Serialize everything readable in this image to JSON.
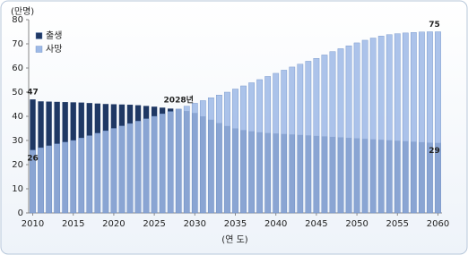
{
  "chart_data": {
    "type": "bar",
    "y_unit": "(만명)",
    "x_label": "(연 도)",
    "x": [
      2010,
      2011,
      2012,
      2013,
      2014,
      2015,
      2016,
      2017,
      2018,
      2019,
      2020,
      2021,
      2022,
      2023,
      2024,
      2025,
      2026,
      2027,
      2028,
      2029,
      2030,
      2031,
      2032,
      2033,
      2034,
      2035,
      2036,
      2037,
      2038,
      2039,
      2040,
      2041,
      2042,
      2043,
      2044,
      2045,
      2046,
      2047,
      2048,
      2049,
      2050,
      2051,
      2052,
      2053,
      2054,
      2055,
      2056,
      2057,
      2058,
      2059,
      2060
    ],
    "series": [
      {
        "name": "출생",
        "color": "#1f3864",
        "values": [
          47,
          46.2,
          46.1,
          46.0,
          45.9,
          45.8,
          45.7,
          45.5,
          45.3,
          45.1,
          45.0,
          44.9,
          44.8,
          44.6,
          44.3,
          44.0,
          43.6,
          43.2,
          43.0,
          42.2,
          41.4,
          40.0,
          38.6,
          37.2,
          36.0,
          35.0,
          34.3,
          33.8,
          33.4,
          33.1,
          32.9,
          32.7,
          32.5,
          32.3,
          32.1,
          31.9,
          31.7,
          31.5,
          31.3,
          31.1,
          30.9,
          30.7,
          30.5,
          30.3,
          30.1,
          29.9,
          29.7,
          29.5,
          29.3,
          29.1,
          29
        ],
        "value_labels": [
          "47",
          null,
          null,
          null,
          null,
          null,
          null,
          null,
          null,
          null,
          null,
          null,
          null,
          null,
          null,
          null,
          null,
          null,
          null,
          null,
          null,
          null,
          null,
          null,
          null,
          null,
          null,
          null,
          null,
          null,
          null,
          null,
          null,
          null,
          null,
          null,
          null,
          null,
          null,
          null,
          null,
          null,
          null,
          null,
          null,
          null,
          null,
          null,
          null,
          null,
          "29"
        ]
      },
      {
        "name": "사망",
        "color": "#9db9e6",
        "values": [
          26,
          27.0,
          27.8,
          28.6,
          29.3,
          30.0,
          31.0,
          32.0,
          33.0,
          34.0,
          35.0,
          36.0,
          37.0,
          38.0,
          39.0,
          40.0,
          41.0,
          42.0,
          43.0,
          44.2,
          45.4,
          46.5,
          47.7,
          48.8,
          50.0,
          51.3,
          52.6,
          53.9,
          55.2,
          56.5,
          57.8,
          59.1,
          60.4,
          61.6,
          62.8,
          64.0,
          65.4,
          66.8,
          68.0,
          69.2,
          70.4,
          71.5,
          72.4,
          73.2,
          73.8,
          74.2,
          74.5,
          74.7,
          74.9,
          75.0,
          75
        ],
        "value_labels": [
          "26",
          null,
          null,
          null,
          null,
          null,
          null,
          null,
          null,
          null,
          null,
          null,
          null,
          null,
          null,
          null,
          null,
          null,
          null,
          null,
          null,
          null,
          null,
          null,
          null,
          null,
          null,
          null,
          null,
          null,
          null,
          null,
          null,
          null,
          null,
          null,
          null,
          null,
          null,
          null,
          null,
          null,
          null,
          null,
          null,
          null,
          null,
          null,
          null,
          null,
          "75"
        ]
      }
    ],
    "annotations": [
      {
        "text": "2028년",
        "x": 2028
      }
    ],
    "xlim": [
      2009.5,
      2060.5
    ],
    "xticks": [
      2010,
      2015,
      2020,
      2025,
      2030,
      2035,
      2040,
      2045,
      2050,
      2055,
      2060
    ],
    "ylim": [
      0,
      80
    ],
    "yticks": [
      0,
      10,
      20,
      30,
      40,
      50,
      60,
      70,
      80
    ],
    "legend": "top-left",
    "grid": false
  }
}
